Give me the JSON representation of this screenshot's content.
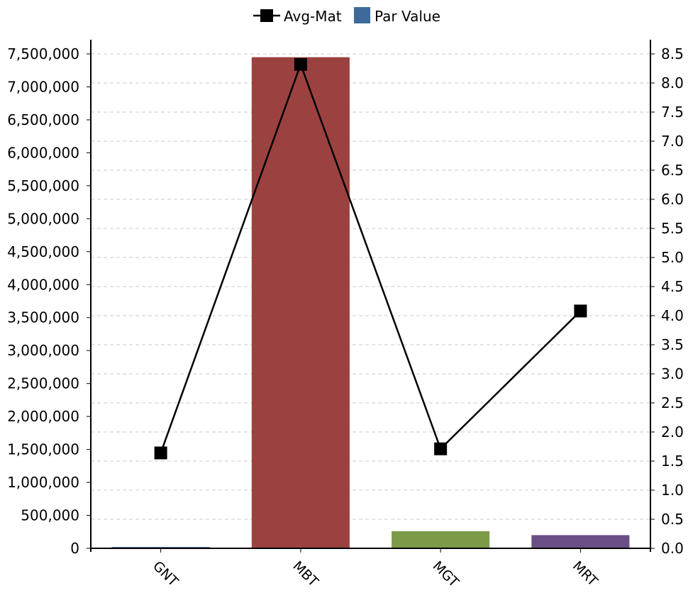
{
  "chart_data": {
    "type": "bar",
    "categories": [
      "GNT",
      "MBT",
      "MGT",
      "MRT"
    ],
    "series": [
      {
        "name": "Par Value",
        "kind": "bar",
        "axis": "left",
        "values": [
          20000,
          7450000,
          260000,
          200000
        ],
        "colors": [
          "#3e6a9b",
          "#9b4240",
          "#7c9a48",
          "#6a4f86"
        ]
      },
      {
        "name": "Avg-Mat",
        "kind": "line",
        "axis": "right",
        "values": [
          1.64,
          8.32,
          1.71,
          4.08
        ],
        "color": "#000000"
      }
    ],
    "legend": {
      "position": "top-center",
      "items": [
        {
          "label": "Avg-Mat",
          "color": "#000000"
        },
        {
          "label": "Par Value",
          "color": "#3e6a9b"
        }
      ]
    },
    "y_left": {
      "ylim": [
        0,
        7500000
      ],
      "ticks": [
        "0",
        "500,000",
        "1,000,000",
        "1,500,000",
        "2,000,000",
        "2,500,000",
        "3,000,000",
        "3,500,000",
        "4,000,000",
        "4,500,000",
        "5,000,000",
        "5,500,000",
        "6,000,000",
        "6,500,000",
        "7,000,000",
        "7,500,000"
      ]
    },
    "y_right": {
      "ylim": [
        0,
        8.5
      ],
      "ticks": [
        "0.0",
        "0.5",
        "1.0",
        "1.5",
        "2.0",
        "2.5",
        "3.0",
        "3.5",
        "4.0",
        "4.5",
        "5.0",
        "5.5",
        "6.0",
        "6.5",
        "7.0",
        "7.5",
        "8.0",
        "8.5"
      ]
    },
    "grid": true,
    "title": "",
    "xlabel": "",
    "ylabel": ""
  }
}
